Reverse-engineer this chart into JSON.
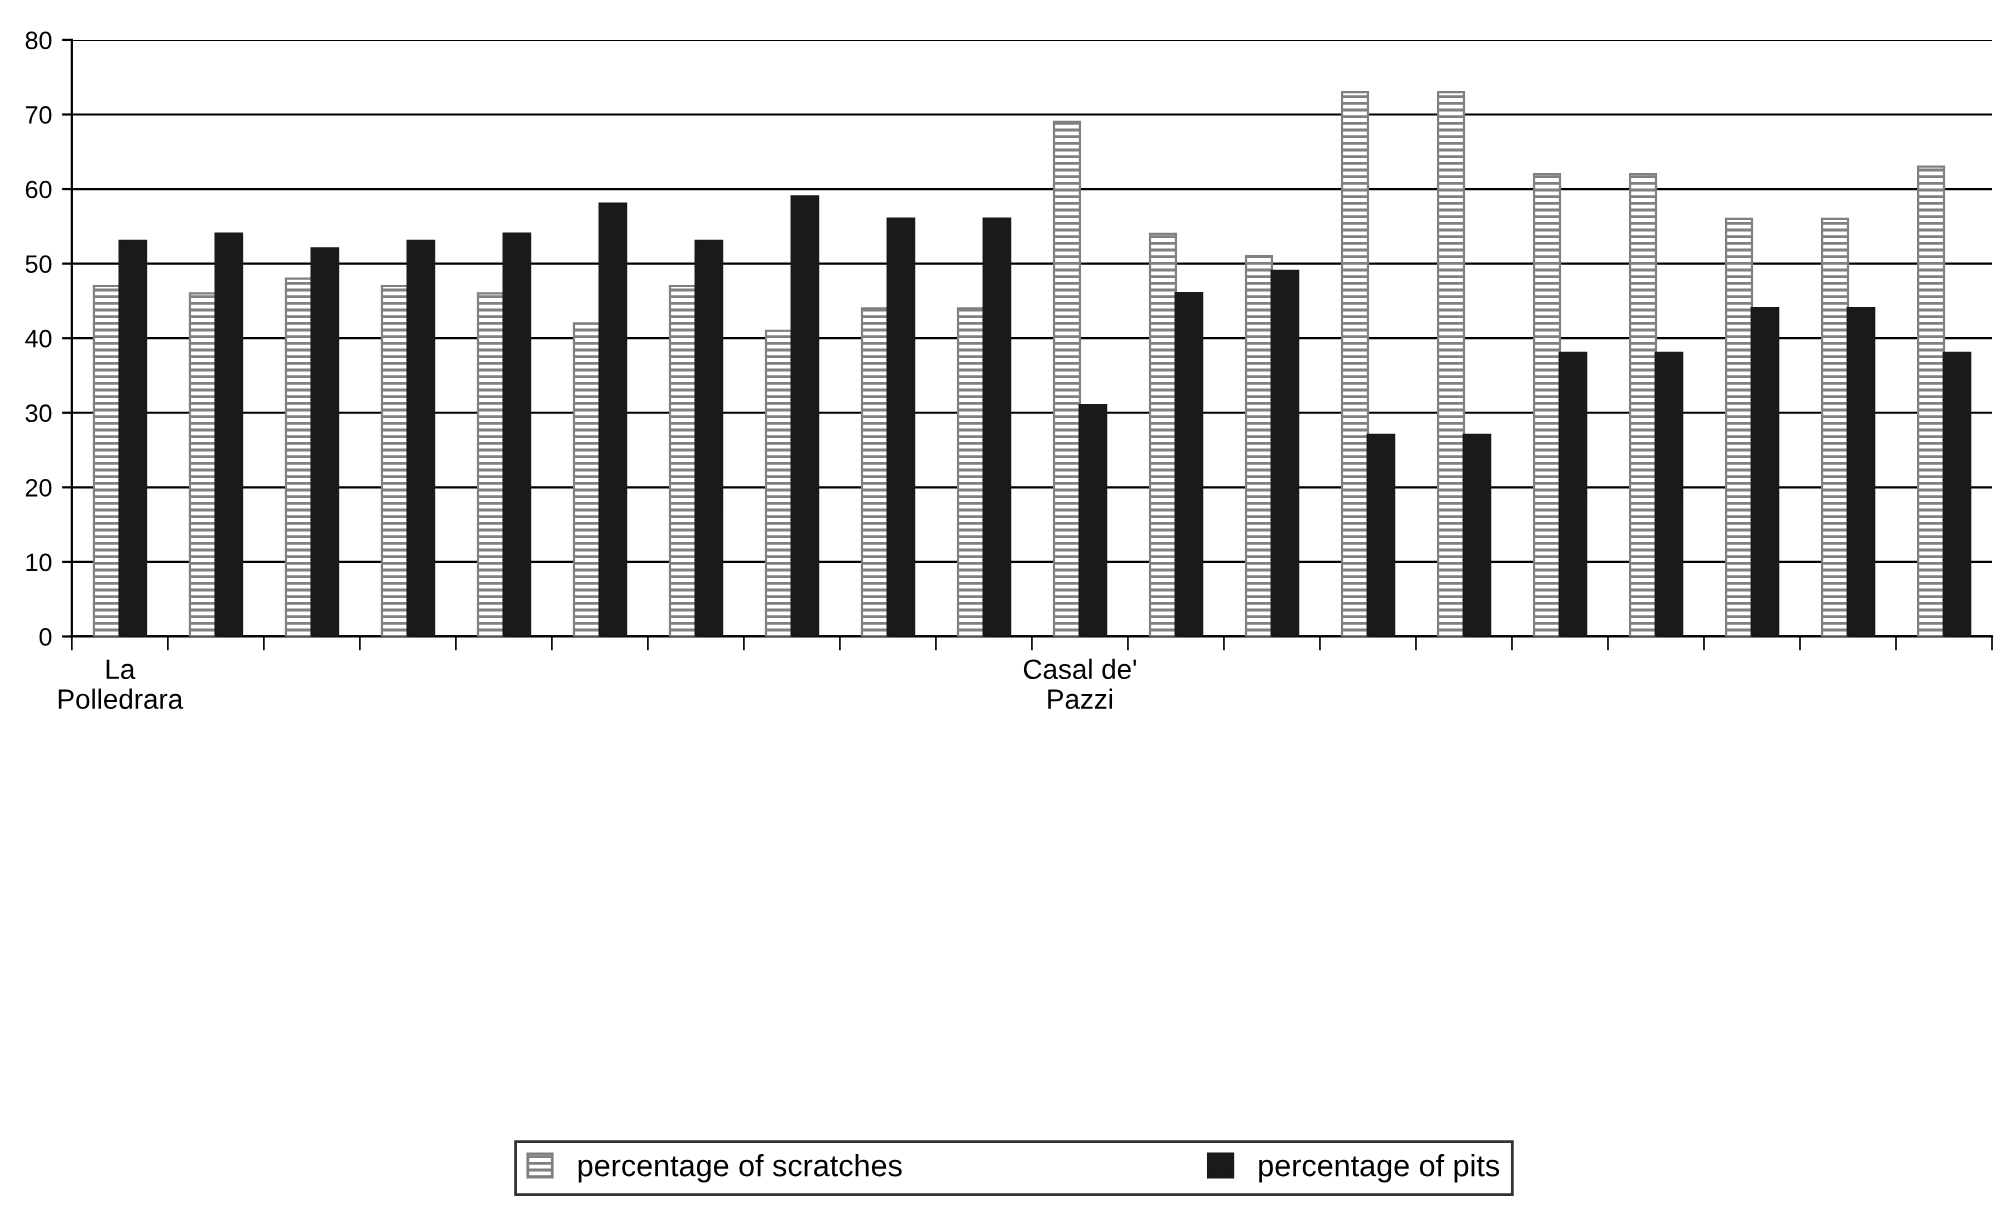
{
  "chart_data": {
    "type": "bar",
    "categories": [
      "La Polledrara",
      null,
      null,
      null,
      null,
      null,
      null,
      null,
      null,
      null,
      "Casal de' Pazzi",
      null,
      null,
      null,
      null,
      null,
      null,
      null,
      null,
      null
    ],
    "series": [
      {
        "name": "percentage of scratches",
        "color": "#808080",
        "values": [
          47,
          46,
          48,
          47,
          46,
          42,
          47,
          41,
          44,
          44,
          69,
          54,
          51,
          73,
          73,
          62,
          62,
          56,
          56,
          63
        ]
      },
      {
        "name": "percentage of pits",
        "color": "#1a1a1a",
        "values": [
          53,
          54,
          52,
          53,
          54,
          58,
          53,
          59,
          56,
          56,
          31,
          46,
          49,
          27,
          27,
          38,
          38,
          44,
          44,
          38
        ]
      }
    ],
    "ylim": [
      0,
      80
    ],
    "yticks": [
      0,
      10,
      20,
      30,
      40,
      50,
      60,
      70,
      80
    ],
    "grid": "y",
    "legend": "bottom"
  }
}
